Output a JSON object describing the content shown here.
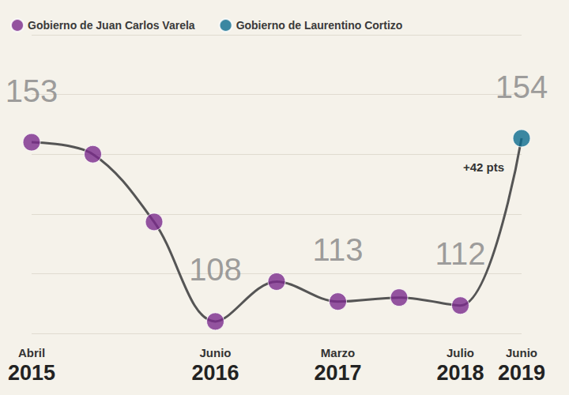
{
  "chart_data": {
    "type": "line",
    "color": "#555555",
    "line_style": "solid",
    "categories": [
      "Abril 2015",
      null,
      null,
      "Junio 2016",
      null,
      "Marzo 2017",
      null,
      "Julio 2018",
      "Junio 2019"
    ],
    "series": [
      {
        "name": "Gobierno de Juan Carlos Varela",
        "color": "#7a2a8c",
        "marker": "circle",
        "values": [
          153,
          150,
          133,
          108,
          118,
          113,
          114,
          112,
          null
        ],
        "value_labels": [
          "153",
          null,
          null,
          "108",
          null,
          "113",
          null,
          "112",
          null
        ]
      },
      {
        "name": "Gobierno de Laurentino Cortizo",
        "color": "#0c6b8e",
        "marker": "circle",
        "values": [
          null,
          null,
          null,
          null,
          null,
          null,
          null,
          null,
          154
        ],
        "value_labels": [
          null,
          null,
          null,
          null,
          null,
          null,
          null,
          null,
          "154"
        ]
      }
    ],
    "ylim": [
      105,
      180
    ],
    "yticks": [
      105,
      120,
      135,
      150,
      165,
      180
    ],
    "grid": true,
    "tick_labels": "x",
    "legend": "top-left",
    "data_labels": true,
    "annotations": [
      {
        "text": "+42 pts"
      }
    ]
  }
}
